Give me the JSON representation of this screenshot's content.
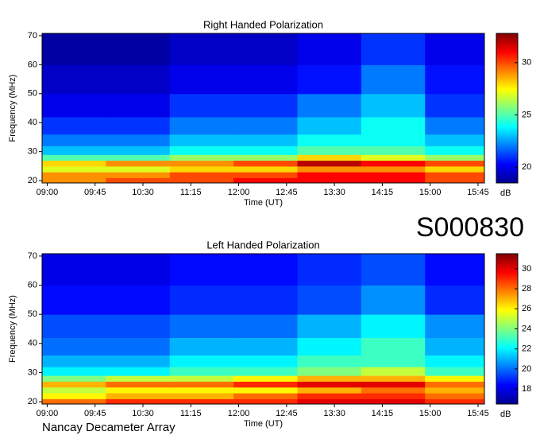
{
  "chart_data": [
    {
      "type": "heatmap",
      "title": "Right Handed Polarization",
      "xlabel": "Time (UT)",
      "ylabel": "Frequency (MHz)",
      "colorbar_label": "dB",
      "colormap": "jet",
      "x_bins": [
        8.92,
        9.92,
        10.92,
        11.92,
        12.92,
        13.92,
        14.92,
        15.85
      ],
      "y_bins": [
        19.2,
        21,
        23,
        25,
        27,
        29,
        32,
        36,
        42,
        50,
        60,
        70.8
      ],
      "z": [
        [
          29,
          30,
          30,
          31,
          31,
          31,
          30
        ],
        [
          29,
          29,
          30,
          30,
          31,
          31,
          30
        ],
        [
          27,
          27,
          28,
          28,
          29,
          29,
          28
        ],
        [
          28,
          29,
          29,
          30,
          32,
          31,
          30
        ],
        [
          25,
          25,
          26,
          26,
          28,
          27,
          26
        ],
        [
          23,
          23,
          24,
          24,
          25,
          25,
          24
        ],
        [
          22,
          22,
          23,
          23,
          24,
          24,
          23
        ],
        [
          21,
          21,
          22,
          22,
          23,
          24,
          22
        ],
        [
          20,
          20,
          21,
          21,
          22,
          23,
          21
        ],
        [
          19.5,
          19.5,
          20,
          20,
          20.5,
          22,
          20.5
        ],
        [
          19,
          19,
          19.5,
          19.5,
          20,
          21,
          20
        ]
      ],
      "xlim": [
        8.92,
        15.85
      ],
      "xticks": [
        {
          "value": 9,
          "label": "09:00"
        },
        {
          "value": 9.75,
          "label": "09:45"
        },
        {
          "value": 10.5,
          "label": "10:30"
        },
        {
          "value": 11.25,
          "label": "11:15"
        },
        {
          "value": 12,
          "label": "12:00"
        },
        {
          "value": 12.75,
          "label": "12:45"
        },
        {
          "value": 13.5,
          "label": "13:30"
        },
        {
          "value": 14.25,
          "label": "14:15"
        },
        {
          "value": 15,
          "label": "15:00"
        },
        {
          "value": 15.75,
          "label": "15:45"
        }
      ],
      "ylim": [
        19.2,
        70.8
      ],
      "yticks": [
        20,
        30,
        40,
        50,
        60,
        70
      ],
      "clim": [
        18.5,
        32.8
      ],
      "cticks": [
        20,
        25,
        30
      ]
    },
    {
      "type": "heatmap",
      "title": "Left Handed Polarization",
      "xlabel": "Time (UT)",
      "ylabel": "Frequency (MHz)",
      "colorbar_label": "dB",
      "colormap": "jet",
      "x_bins": [
        8.92,
        9.92,
        10.92,
        11.92,
        12.92,
        13.92,
        14.92,
        15.85
      ],
      "y_bins": [
        19.2,
        21,
        23,
        25,
        27,
        29,
        32,
        36,
        42,
        50,
        60,
        70.8
      ],
      "z": [
        [
          28,
          29,
          29,
          29,
          30,
          30,
          29
        ],
        [
          26,
          27,
          27,
          28,
          29,
          29,
          28
        ],
        [
          25,
          26,
          26,
          26,
          27,
          28,
          27
        ],
        [
          27,
          28,
          28,
          29,
          30,
          30,
          28
        ],
        [
          24,
          25,
          25,
          26,
          27,
          27,
          26
        ],
        [
          22,
          22,
          23,
          23,
          24,
          25,
          23
        ],
        [
          21,
          21,
          22,
          22,
          23,
          23,
          22
        ],
        [
          20,
          20,
          21,
          21,
          22,
          23,
          21
        ],
        [
          19.5,
          19.5,
          20,
          20,
          21,
          22,
          20.5
        ],
        [
          18.5,
          18.5,
          19,
          19,
          19.5,
          20.5,
          19
        ],
        [
          18,
          18,
          18.5,
          18.5,
          19,
          19.5,
          18.5
        ]
      ],
      "xlim": [
        8.92,
        15.85
      ],
      "xticks": [
        {
          "value": 9,
          "label": "09:00"
        },
        {
          "value": 9.75,
          "label": "09:45"
        },
        {
          "value": 10.5,
          "label": "10:30"
        },
        {
          "value": 11.25,
          "label": "11:15"
        },
        {
          "value": 12,
          "label": "12:00"
        },
        {
          "value": 12.75,
          "label": "12:45"
        },
        {
          "value": 13.5,
          "label": "13:30"
        },
        {
          "value": 14.25,
          "label": "14:15"
        },
        {
          "value": 15,
          "label": "15:00"
        },
        {
          "value": 15.75,
          "label": "15:45"
        }
      ],
      "ylim": [
        19.2,
        70.8
      ],
      "yticks": [
        20,
        30,
        40,
        50,
        60,
        70
      ],
      "clim": [
        16.5,
        31.5
      ],
      "cticks": [
        18,
        20,
        22,
        24,
        26,
        28,
        30
      ]
    }
  ],
  "label": "S000830",
  "footer": "Nancay Decameter Array"
}
